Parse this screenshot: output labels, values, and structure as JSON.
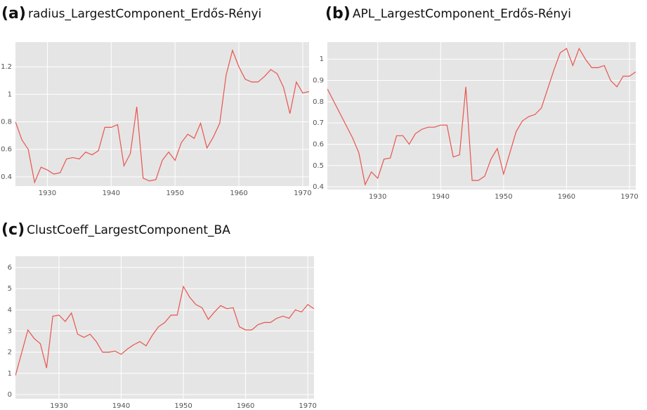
{
  "chart_data": [
    {
      "type": "line",
      "label": "(a)",
      "title": "radius_LargestComponent_Erdős-Rényi",
      "color": "#e8554e",
      "grid": true,
      "x": [
        1925,
        1926,
        1927,
        1928,
        1929,
        1930,
        1931,
        1932,
        1933,
        1934,
        1935,
        1936,
        1937,
        1938,
        1939,
        1940,
        1941,
        1942,
        1943,
        1944,
        1945,
        1946,
        1947,
        1948,
        1949,
        1950,
        1951,
        1952,
        1953,
        1954,
        1955,
        1956,
        1957,
        1958,
        1959,
        1960,
        1961,
        1962,
        1963,
        1964,
        1965,
        1966,
        1967,
        1968,
        1969,
        1970,
        1971
      ],
      "values": [
        0.8,
        0.67,
        0.6,
        0.36,
        0.47,
        0.45,
        0.42,
        0.43,
        0.53,
        0.54,
        0.53,
        0.58,
        0.56,
        0.59,
        0.76,
        0.76,
        0.78,
        0.48,
        0.57,
        0.91,
        0.39,
        0.37,
        0.38,
        0.52,
        0.58,
        0.52,
        0.65,
        0.71,
        0.68,
        0.79,
        0.61,
        0.69,
        0.79,
        1.14,
        1.32,
        1.2,
        1.11,
        1.09,
        1.09,
        1.13,
        1.18,
        1.15,
        1.05,
        0.86,
        1.09,
        1.01,
        1.02
      ],
      "xlim": [
        1925,
        1971
      ],
      "xticks": [
        1930,
        1940,
        1950,
        1960,
        1970
      ],
      "ylim": [
        0.333,
        1.38
      ],
      "yticks": [
        0.4,
        0.6,
        0.8,
        1,
        1.2
      ]
    },
    {
      "type": "line",
      "label": "(b)",
      "title": "APL_LargestComponent_Erdős-Rényi",
      "color": "#e8554e",
      "grid": true,
      "x": [
        1922,
        1926,
        1927,
        1928,
        1929,
        1930,
        1931,
        1932,
        1933,
        1934,
        1935,
        1936,
        1937,
        1938,
        1939,
        1940,
        1941,
        1942,
        1943,
        1944,
        1945,
        1946,
        1947,
        1948,
        1949,
        1950,
        1951,
        1952,
        1953,
        1954,
        1955,
        1956,
        1957,
        1958,
        1959,
        1960,
        1961,
        1962,
        1963,
        1964,
        1965,
        1966,
        1967,
        1968,
        1969,
        1970,
        1971
      ],
      "values": [
        0.86,
        0.63,
        0.56,
        0.41,
        0.47,
        0.44,
        0.53,
        0.535,
        0.64,
        0.64,
        0.6,
        0.65,
        0.67,
        0.68,
        0.68,
        0.69,
        0.69,
        0.54,
        0.55,
        0.87,
        0.43,
        0.43,
        0.45,
        0.53,
        0.58,
        0.46,
        0.56,
        0.66,
        0.71,
        0.73,
        0.74,
        0.77,
        0.86,
        0.95,
        1.03,
        1.05,
        0.97,
        1.05,
        1.0,
        0.96,
        0.96,
        0.97,
        0.9,
        0.87,
        0.92,
        0.92,
        0.94
      ],
      "xlim": [
        1922,
        1971
      ],
      "xticks": [
        1930,
        1940,
        1950,
        1960,
        1970
      ],
      "ylim": [
        0.387,
        1.08
      ],
      "yticks": [
        0.4,
        0.5,
        0.6,
        0.7,
        0.8,
        0.9,
        1
      ]
    },
    {
      "type": "line",
      "label": "(c)",
      "title": "ClustCoeff_LargestComponent_BA",
      "color": "#e8554e",
      "grid": true,
      "x": [
        1923,
        1925,
        1926,
        1927,
        1928,
        1929,
        1930,
        1931,
        1932,
        1933,
        1934,
        1935,
        1936,
        1937,
        1938,
        1939,
        1940,
        1941,
        1942,
        1943,
        1944,
        1945,
        1946,
        1947,
        1948,
        1949,
        1950,
        1951,
        1952,
        1953,
        1954,
        1955,
        1956,
        1957,
        1958,
        1959,
        1960,
        1961,
        1962,
        1963,
        1964,
        1965,
        1966,
        1967,
        1968,
        1969,
        1970,
        1971
      ],
      "values": [
        0.9,
        3.05,
        2.65,
        2.4,
        1.25,
        3.7,
        3.75,
        3.45,
        3.85,
        2.85,
        2.7,
        2.85,
        2.5,
        2.0,
        2.0,
        2.05,
        1.9,
        2.15,
        2.35,
        2.5,
        2.3,
        2.8,
        3.2,
        3.4,
        3.75,
        3.75,
        5.1,
        4.6,
        4.25,
        4.1,
        3.55,
        3.9,
        4.2,
        4.05,
        4.1,
        3.2,
        3.05,
        3.05,
        3.3,
        3.4,
        3.4,
        3.6,
        3.7,
        3.6,
        4.0,
        3.9,
        4.25,
        4.05
      ],
      "xlim": [
        1923,
        1971
      ],
      "xticks": [
        1930,
        1940,
        1950,
        1960,
        1970
      ],
      "ylim": [
        -0.2,
        6.53
      ],
      "yticks": [
        0,
        1,
        2,
        3,
        4,
        5,
        6
      ]
    }
  ]
}
